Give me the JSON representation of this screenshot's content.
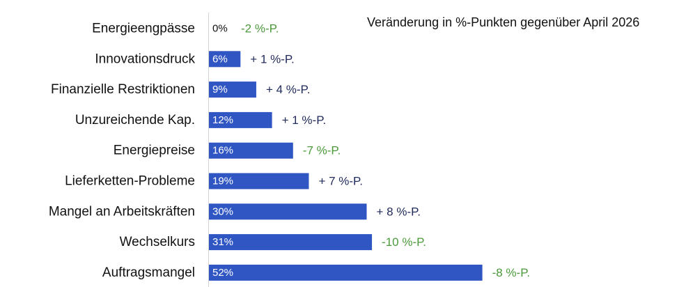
{
  "chart_data": {
    "type": "bar",
    "orientation": "horizontal",
    "title": "",
    "subtitle": "Veränderung in %-Punkten gegenüber April 2026",
    "xlabel": "",
    "ylabel": "",
    "xlim": [
      0,
      100
    ],
    "unit": "%",
    "grid": false,
    "legend": "none",
    "categories": [
      "Energieengpässe",
      "Innovationsdruck",
      "Finanzielle Restriktionen",
      "Unzureichende Kap.",
      "Energiepreise",
      "Lieferketten-Probleme",
      "Mangel an Arbeitskräften",
      "Wechselkurs",
      "Auftragsmangel"
    ],
    "values": [
      0,
      6,
      9,
      12,
      16,
      19,
      30,
      31,
      52
    ],
    "value_labels": [
      "0%",
      "6%",
      "9%",
      "12%",
      "16%",
      "19%",
      "30%",
      "31%",
      "52%"
    ],
    "changes": [
      "-2 %-P.",
      "+ 1 %-P.",
      "+ 4 %-P.",
      "+ 1 %-P.",
      "-7 %-P.",
      "+ 7 %-P.",
      "+ 8 %-P.",
      "-10 %-P.",
      "-8 %-P."
    ],
    "change_values": [
      -2,
      1,
      4,
      1,
      -7,
      7,
      8,
      -10,
      -8
    ],
    "colors": {
      "bar": "#3056c4",
      "axis": "#d4d4d4",
      "increase": "#1f2a5a",
      "decrease": "#4a9a3a"
    }
  }
}
